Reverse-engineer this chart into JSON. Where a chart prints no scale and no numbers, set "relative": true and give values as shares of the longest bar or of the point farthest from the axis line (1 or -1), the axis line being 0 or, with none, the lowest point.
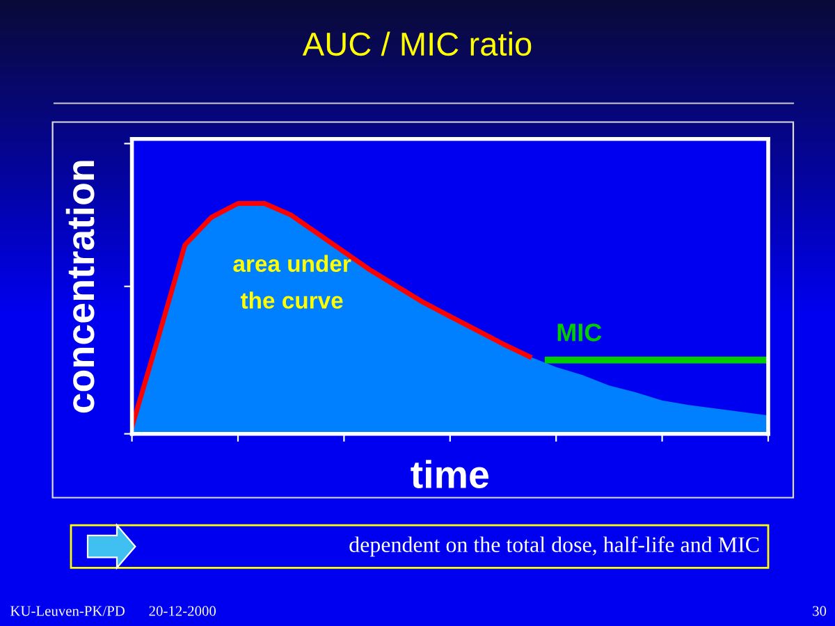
{
  "chart_data": {
    "type": "area",
    "title": "AUC / MIC ratio",
    "xlabel": "time",
    "ylabel": "concentration",
    "relative": true,
    "categories": [
      null,
      null,
      null,
      null,
      null,
      null,
      null,
      null,
      null,
      null,
      null,
      null,
      null,
      null,
      null,
      null,
      null,
      null,
      null,
      null,
      null,
      null,
      null,
      null,
      null
    ],
    "series": [
      {
        "color": "#0080ff",
        "values": [
          0.03,
          0.42,
          0.82,
          0.94,
          1.0,
          1.0,
          0.95,
          0.87,
          0.79,
          0.71,
          0.64,
          0.57,
          0.51,
          0.45,
          0.39,
          0.335,
          0.29,
          0.255,
          0.21,
          0.18,
          0.145,
          0.125,
          0.11,
          0.095,
          0.08
        ]
      },
      {
        "type": "line",
        "color": "#ff0000",
        "values": [
          0.03,
          0.42,
          0.82,
          0.94,
          1.0,
          1.0,
          0.95,
          0.87,
          0.79,
          0.71,
          0.64,
          0.57,
          0.51,
          0.45,
          0.39,
          0.335,
          null,
          null,
          null,
          null,
          null,
          null,
          null,
          null,
          null
        ]
      }
    ],
    "ref_lines": [
      {
        "axis": "y",
        "value": 0.32,
        "label": "MIC",
        "color": "#00cc00"
      }
    ],
    "annotations": [
      "area under\nthe curve",
      "dependent on the total dose, half-life and MIC",
      "KU-Leuven-PK/PD",
      "20-12-2000",
      "30"
    ],
    "grid": false,
    "legend": false
  }
}
